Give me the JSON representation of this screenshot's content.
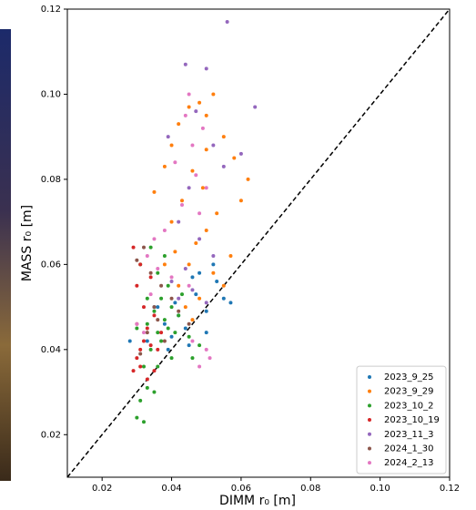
{
  "chart_data": {
    "type": "scatter",
    "xlabel": "DIMM r₀ [m]",
    "ylabel": "MASS r₀ [m]",
    "xlim": [
      0.01,
      0.12
    ],
    "ylim": [
      0.01,
      0.12
    ],
    "xticks": [
      0.02,
      0.04,
      0.06,
      0.08,
      {
        "value": 0.1,
        "label": "0.10"
      },
      0.12
    ],
    "yticks": [
      0.02,
      0.04,
      0.06,
      0.08,
      {
        "value": 0.1,
        "label": "0.10"
      },
      0.12
    ],
    "legend": "lower right",
    "series": [
      {
        "name": "2023_9_25",
        "color": "#1f77b4",
        "x": [
          0.035,
          0.038,
          0.048,
          0.053,
          0.057,
          0.05,
          0.045,
          0.04,
          0.033,
          0.036,
          0.042,
          0.047,
          0.052,
          0.055,
          0.044,
          0.039,
          0.028,
          0.046,
          0.05,
          0.041
        ],
        "y": [
          0.05,
          0.046,
          0.058,
          0.056,
          0.051,
          0.044,
          0.041,
          0.043,
          0.042,
          0.05,
          0.048,
          0.053,
          0.06,
          0.052,
          0.045,
          0.04,
          0.042,
          0.057,
          0.049,
          0.051
        ]
      },
      {
        "name": "2023_9_29",
        "color": "#ff7f0e",
        "x": [
          0.035,
          0.038,
          0.04,
          0.042,
          0.045,
          0.048,
          0.05,
          0.052,
          0.055,
          0.058,
          0.062,
          0.06,
          0.053,
          0.05,
          0.047,
          0.045,
          0.042,
          0.048,
          0.052,
          0.055,
          0.04,
          0.043,
          0.046,
          0.05,
          0.044,
          0.046,
          0.041,
          0.057,
          0.049,
          0.038
        ],
        "y": [
          0.077,
          0.083,
          0.088,
          0.093,
          0.097,
          0.098,
          0.095,
          0.1,
          0.09,
          0.085,
          0.08,
          0.075,
          0.072,
          0.068,
          0.065,
          0.06,
          0.055,
          0.052,
          0.058,
          0.055,
          0.07,
          0.075,
          0.082,
          0.087,
          0.05,
          0.047,
          0.063,
          0.062,
          0.078,
          0.06
        ]
      },
      {
        "name": "2023_10_2",
        "color": "#2ca02c",
        "x": [
          0.03,
          0.032,
          0.031,
          0.033,
          0.035,
          0.032,
          0.034,
          0.036,
          0.038,
          0.035,
          0.033,
          0.037,
          0.04,
          0.042,
          0.039,
          0.036,
          0.038,
          0.034,
          0.031,
          0.03,
          0.033,
          0.037,
          0.041,
          0.045,
          0.048,
          0.046,
          0.04,
          0.036,
          0.043,
          0.039
        ],
        "y": [
          0.024,
          0.023,
          0.028,
          0.031,
          0.03,
          0.036,
          0.04,
          0.044,
          0.047,
          0.049,
          0.052,
          0.052,
          0.05,
          0.048,
          0.055,
          0.058,
          0.062,
          0.064,
          0.06,
          0.045,
          0.046,
          0.042,
          0.044,
          0.043,
          0.041,
          0.038,
          0.038,
          0.036,
          0.053,
          0.045
        ]
      },
      {
        "name": "2023_10_19",
        "color": "#d62728",
        "x": [
          0.029,
          0.03,
          0.031,
          0.032,
          0.03,
          0.033,
          0.034,
          0.031,
          0.035,
          0.036,
          0.032,
          0.03,
          0.029,
          0.031,
          0.034,
          0.037,
          0.033,
          0.035
        ],
        "y": [
          0.035,
          0.038,
          0.04,
          0.042,
          0.046,
          0.045,
          0.041,
          0.036,
          0.035,
          0.04,
          0.05,
          0.055,
          0.064,
          0.06,
          0.057,
          0.044,
          0.033,
          0.048
        ]
      },
      {
        "name": "2023_11_3",
        "color": "#9467bd",
        "x": [
          0.056,
          0.044,
          0.05,
          0.064,
          0.047,
          0.039,
          0.052,
          0.06,
          0.055,
          0.045,
          0.042,
          0.048,
          0.052,
          0.044,
          0.04,
          0.046,
          0.05,
          0.042
        ],
        "y": [
          0.117,
          0.107,
          0.106,
          0.097,
          0.096,
          0.09,
          0.088,
          0.086,
          0.083,
          0.078,
          0.07,
          0.066,
          0.062,
          0.059,
          0.056,
          0.054,
          0.051,
          0.052
        ]
      },
      {
        "name": "2024_1_30",
        "color": "#8c564b",
        "x": [
          0.03,
          0.032,
          0.034,
          0.037,
          0.04,
          0.042,
          0.036,
          0.033,
          0.038,
          0.035,
          0.045,
          0.031
        ],
        "y": [
          0.061,
          0.064,
          0.058,
          0.055,
          0.052,
          0.049,
          0.047,
          0.044,
          0.042,
          0.05,
          0.046,
          0.039
        ]
      },
      {
        "name": "2024_2_13",
        "color": "#e377c2",
        "x": [
          0.045,
          0.044,
          0.049,
          0.046,
          0.041,
          0.047,
          0.05,
          0.043,
          0.048,
          0.038,
          0.035,
          0.033,
          0.036,
          0.04,
          0.045,
          0.03,
          0.032,
          0.05,
          0.048,
          0.051,
          0.046,
          0.034
        ],
        "y": [
          0.1,
          0.095,
          0.092,
          0.088,
          0.084,
          0.081,
          0.078,
          0.074,
          0.072,
          0.068,
          0.066,
          0.062,
          0.059,
          0.057,
          0.055,
          0.046,
          0.044,
          0.04,
          0.036,
          0.038,
          0.042,
          0.053
        ]
      }
    ]
  }
}
